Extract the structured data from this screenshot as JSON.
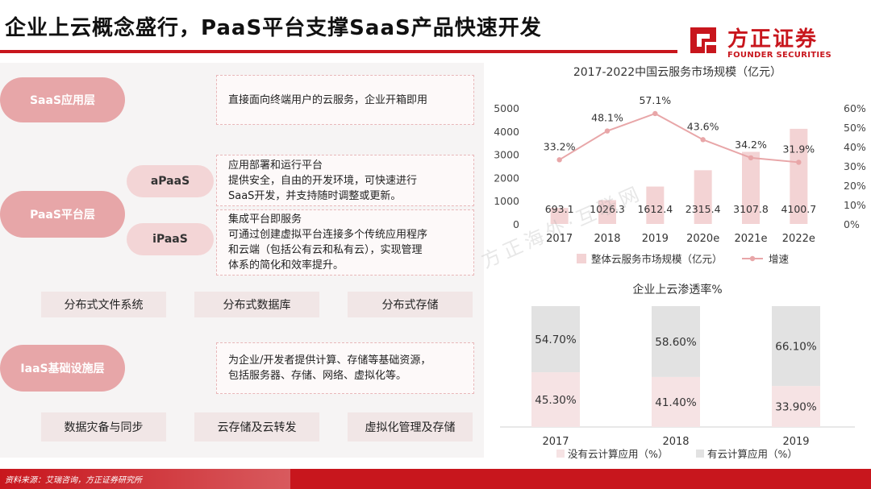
{
  "page": {
    "title": "企业上云概念盛行，PaaS平台支撑SaaS产品快速开发",
    "source": "资料来源：艾瑞咨询，方正证券研究所",
    "watermark": "方正海外·互联网"
  },
  "logo": {
    "cn": "方正证券",
    "en": "FOUNDER SECURITIES",
    "icon": "founder-logo-icon",
    "color": "#c8161d"
  },
  "layers": {
    "saas": {
      "label": "SaaS应用层",
      "desc": "直接面向终端用户的云服务，企业开箱即用"
    },
    "paas": {
      "label": "PaaS平台层",
      "apaas": {
        "label": "aPaaS",
        "desc": [
          "应用部署和运行平台",
          "提供安全，自由的开发环境，可快速进行",
          "SaaS开发，并支持随时调整或更新。"
        ]
      },
      "ipaas": {
        "label": "iPaaS",
        "desc": [
          "集成平台即服务",
          "可通过创建虚拟平台连接多个传统应用程序",
          "和云端（包括公有云和私有云），实现管理",
          "体系的简化和效率提升。"
        ]
      },
      "tags": [
        "分布式文件系统",
        "分布式数据库",
        "分布式存储"
      ]
    },
    "iaas": {
      "label": "IaaS基础设施层",
      "desc": [
        "为企业/开发者提供计算、存储等基础资源，",
        "包括服务器、存储、网络、虚拟化等。"
      ],
      "tags": [
        "数据灾备与同步",
        "云存储及云转发",
        "虚拟化管理及存储"
      ]
    }
  },
  "chart_data": [
    {
      "type": "bar",
      "title": "2017-2022中国云服务市场规模（亿元）",
      "categories": [
        "2017",
        "2018",
        "2019",
        "2020e",
        "2021e",
        "2022e"
      ],
      "series": [
        {
          "name": "整体云服务市场规模（亿元）",
          "type": "bar",
          "axis": "left",
          "color": "#f3d3d4",
          "values": [
            693.1,
            1026.3,
            1612.4,
            2315.4,
            3107.8,
            4100.7
          ],
          "labels": [
            "693.1",
            "1026.3",
            "1612.4",
            "2315.4",
            "3107.8",
            "4100.7"
          ]
        },
        {
          "name": "增速",
          "type": "line",
          "axis": "right",
          "color": "#e8a6a8",
          "values": [
            33.2,
            48.1,
            57.1,
            43.6,
            34.2,
            31.9
          ],
          "labels": [
            "33.2%",
            "48.1%",
            "57.1%",
            "43.6%",
            "34.2%",
            "31.9%"
          ]
        }
      ],
      "y_left": {
        "min": 0,
        "max": 5000,
        "ticks": [
          "0",
          "1000",
          "2000",
          "3000",
          "4000",
          "5000"
        ]
      },
      "y_right": {
        "min": 0,
        "max": 60,
        "ticks": [
          "0%",
          "10%",
          "20%",
          "30%",
          "40%",
          "50%",
          "60%"
        ]
      },
      "legend_position": "bottom"
    },
    {
      "type": "bar",
      "stacked": true,
      "title": "企业上云渗透率%",
      "categories": [
        "2017",
        "2018",
        "2019"
      ],
      "series": [
        {
          "name": "没有云计算应用（%）",
          "color": "#f6e3e4",
          "values": [
            45.3,
            41.4,
            33.9
          ],
          "labels": [
            "45.30%",
            "41.40%",
            "33.90%"
          ]
        },
        {
          "name": "有云计算应用（%）",
          "color": "#e2e2e2",
          "values": [
            54.7,
            58.6,
            66.1
          ],
          "labels": [
            "54.70%",
            "58.60%",
            "66.10%"
          ]
        }
      ],
      "ylim": [
        0,
        100
      ],
      "legend_position": "bottom"
    }
  ]
}
